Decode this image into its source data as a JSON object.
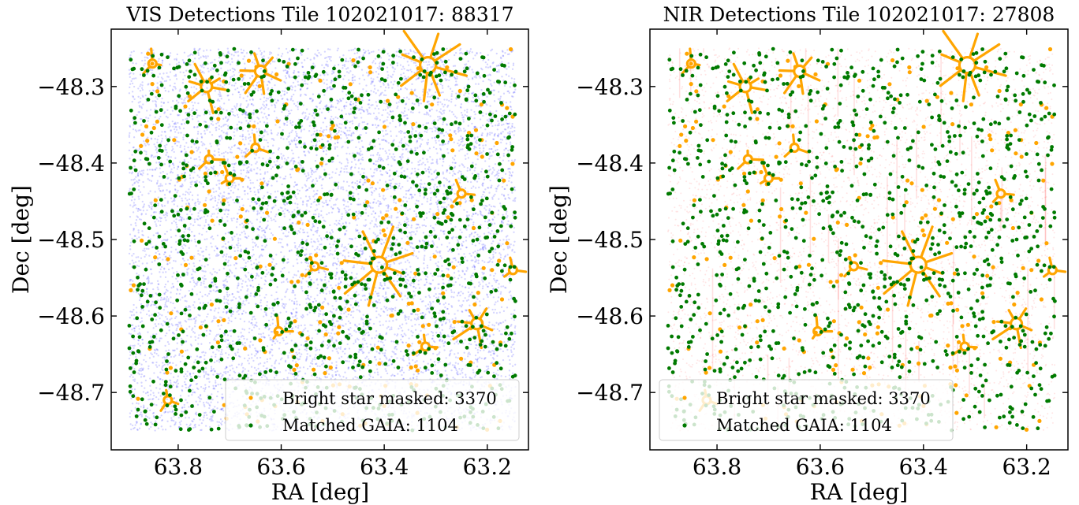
{
  "chart_data": [
    {
      "type": "scatter",
      "title": "VIS Detections Tile 102021017: 88317",
      "xlabel": "RA [deg]",
      "ylabel": "Dec [deg]",
      "xlim": [
        63.93,
        63.12
      ],
      "ylim": [
        -48.775,
        -48.225
      ],
      "x_ticks": [
        63.8,
        63.6,
        63.4,
        63.2
      ],
      "x_tick_labels": [
        "63.8",
        "63.6",
        "63.4",
        "63.2"
      ],
      "y_ticks": [
        -48.3,
        -48.4,
        -48.5,
        -48.6,
        -48.7
      ],
      "y_tick_labels": [
        "−48.3",
        "−48.4",
        "−48.5",
        "−48.6",
        "−48.7"
      ],
      "footprint": {
        "ra": [
          63.145,
          63.895
        ],
        "dec": [
          -48.75,
          -48.25
        ]
      },
      "grid": false,
      "legend_position": "lower-right",
      "series": [
        {
          "name": "",
          "color": "#0000ff",
          "count": 88317,
          "role": "detections"
        },
        {
          "name": "Bright star masked: 3370",
          "color": "#ffa500",
          "count": 3370
        },
        {
          "name": "Matched GAIA: 1104",
          "color": "#007a00",
          "count": 1104
        }
      ],
      "bright_stars": [
        {
          "ra": 63.315,
          "dec": -48.272,
          "size": "large"
        },
        {
          "ra": 63.41,
          "dec": -48.533,
          "size": "large"
        },
        {
          "ra": 63.64,
          "dec": -48.28,
          "size": "medium"
        },
        {
          "ra": 63.745,
          "dec": -48.3,
          "size": "medium"
        },
        {
          "ra": 63.85,
          "dec": -48.27,
          "size": "small"
        },
        {
          "ra": 63.22,
          "dec": -48.61,
          "size": "medium"
        },
        {
          "ra": 63.535,
          "dec": -48.535,
          "size": "small"
        },
        {
          "ra": 63.605,
          "dec": -48.62,
          "size": "small"
        },
        {
          "ra": 63.74,
          "dec": -48.395,
          "size": "small"
        },
        {
          "ra": 63.25,
          "dec": -48.44,
          "size": "small"
        },
        {
          "ra": 63.82,
          "dec": -48.71,
          "size": "small"
        },
        {
          "ra": 63.15,
          "dec": -48.54,
          "size": "small"
        },
        {
          "ra": 63.65,
          "dec": -48.38,
          "size": "small"
        },
        {
          "ra": 63.7,
          "dec": -48.42,
          "size": "small"
        },
        {
          "ra": 63.32,
          "dec": -48.64,
          "size": "small"
        }
      ]
    },
    {
      "type": "scatter",
      "title": "NIR Detections Tile 102021017: 27808",
      "xlabel": "RA [deg]",
      "ylabel": "Dec [deg]",
      "xlim": [
        63.93,
        63.12
      ],
      "ylim": [
        -48.775,
        -48.225
      ],
      "x_ticks": [
        63.8,
        63.6,
        63.4,
        63.2
      ],
      "x_tick_labels": [
        "63.8",
        "63.6",
        "63.4",
        "63.2"
      ],
      "y_ticks": [
        -48.3,
        -48.4,
        -48.5,
        -48.6,
        -48.7
      ],
      "y_tick_labels": [
        "−48.3",
        "−48.4",
        "−48.5",
        "−48.6",
        "−48.7"
      ],
      "footprint": {
        "ra": [
          63.145,
          63.895
        ],
        "dec": [
          -48.75,
          -48.25
        ]
      },
      "grid": false,
      "legend_position": "lower-right",
      "series": [
        {
          "name": "",
          "color": "#ff0000",
          "count": 27808,
          "role": "detections"
        },
        {
          "name": "Bright star masked: 3370",
          "color": "#ffa500",
          "count": 3370
        },
        {
          "name": "Matched GAIA: 1104",
          "color": "#007a00",
          "count": 1104
        }
      ],
      "bright_stars": [
        {
          "ra": 63.315,
          "dec": -48.272,
          "size": "large"
        },
        {
          "ra": 63.41,
          "dec": -48.533,
          "size": "large"
        },
        {
          "ra": 63.64,
          "dec": -48.28,
          "size": "medium"
        },
        {
          "ra": 63.745,
          "dec": -48.3,
          "size": "medium"
        },
        {
          "ra": 63.85,
          "dec": -48.27,
          "size": "small"
        },
        {
          "ra": 63.22,
          "dec": -48.61,
          "size": "medium"
        },
        {
          "ra": 63.535,
          "dec": -48.535,
          "size": "small"
        },
        {
          "ra": 63.605,
          "dec": -48.62,
          "size": "small"
        },
        {
          "ra": 63.74,
          "dec": -48.395,
          "size": "small"
        },
        {
          "ra": 63.25,
          "dec": -48.44,
          "size": "small"
        },
        {
          "ra": 63.82,
          "dec": -48.71,
          "size": "small"
        },
        {
          "ra": 63.15,
          "dec": -48.54,
          "size": "small"
        },
        {
          "ra": 63.65,
          "dec": -48.38,
          "size": "small"
        },
        {
          "ra": 63.7,
          "dec": -48.42,
          "size": "small"
        },
        {
          "ra": 63.32,
          "dec": -48.64,
          "size": "small"
        }
      ]
    }
  ]
}
